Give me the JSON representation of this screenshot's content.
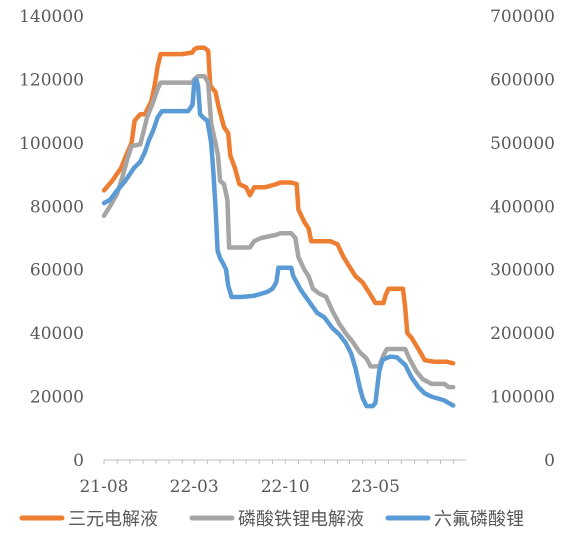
{
  "chart_data": {
    "type": "line",
    "axes": {
      "y_left": {
        "min": 0,
        "max": 140000,
        "ticks": [
          "0",
          "20000",
          "40000",
          "60000",
          "80000",
          "100000",
          "120000",
          "140000"
        ]
      },
      "y_right": {
        "min": 0,
        "max": 700000,
        "ticks": [
          "0",
          "100000",
          "200000",
          "300000",
          "400000",
          "500000",
          "600000",
          "700000"
        ]
      },
      "x": {
        "start": "2021-08",
        "end": "2023-11",
        "tick_labels": [
          "21-08",
          "22-03",
          "22-10",
          "23-05"
        ]
      }
    },
    "grid": false,
    "legend": {
      "position": "bottom"
    },
    "series": [
      {
        "name": "三元电解液",
        "axis": "left",
        "color": "#ED7D31",
        "points": [
          [
            "2021-08-01",
            85000
          ],
          [
            "2021-08-20",
            88000
          ],
          [
            "2021-09-10",
            92000
          ],
          [
            "2021-09-25",
            97000
          ],
          [
            "2021-10-05",
            100000
          ],
          [
            "2021-10-12",
            107000
          ],
          [
            "2021-10-25",
            109000
          ],
          [
            "2021-11-05",
            109000
          ],
          [
            "2021-11-20",
            113000
          ],
          [
            "2021-11-28",
            118000
          ],
          [
            "2021-12-05",
            124000
          ],
          [
            "2021-12-12",
            128000
          ],
          [
            "2022-01-01",
            128000
          ],
          [
            "2022-02-01",
            128000
          ],
          [
            "2022-02-25",
            128500
          ],
          [
            "2022-03-01",
            129500
          ],
          [
            "2022-03-10",
            130000
          ],
          [
            "2022-03-25",
            130000
          ],
          [
            "2022-04-03",
            129000
          ],
          [
            "2022-04-08",
            118000
          ],
          [
            "2022-04-20",
            116000
          ],
          [
            "2022-04-28",
            111000
          ],
          [
            "2022-05-10",
            105000
          ],
          [
            "2022-05-20",
            103000
          ],
          [
            "2022-05-25",
            96000
          ],
          [
            "2022-06-05",
            92000
          ],
          [
            "2022-06-15",
            87000
          ],
          [
            "2022-07-01",
            86000
          ],
          [
            "2022-07-10",
            83500
          ],
          [
            "2022-07-20",
            86000
          ],
          [
            "2022-08-15",
            86000
          ],
          [
            "2022-09-10",
            87000
          ],
          [
            "2022-09-20",
            87500
          ],
          [
            "2022-10-15",
            87500
          ],
          [
            "2022-10-28",
            87000
          ],
          [
            "2022-11-01",
            79000
          ],
          [
            "2022-11-08",
            77000
          ],
          [
            "2022-11-15",
            75000
          ],
          [
            "2022-11-25",
            73000
          ],
          [
            "2022-12-01",
            69000
          ],
          [
            "2023-01-15",
            69000
          ],
          [
            "2023-02-01",
            68000
          ],
          [
            "2023-02-15",
            64000
          ],
          [
            "2023-03-01",
            61000
          ],
          [
            "2023-03-15",
            58000
          ],
          [
            "2023-04-01",
            56000
          ],
          [
            "2023-04-20",
            52000
          ],
          [
            "2023-05-01",
            49500
          ],
          [
            "2023-05-20",
            49500
          ],
          [
            "2023-05-25",
            52000
          ],
          [
            "2023-06-01",
            54000
          ],
          [
            "2023-07-05",
            54000
          ],
          [
            "2023-07-10",
            48000
          ],
          [
            "2023-07-15",
            40000
          ],
          [
            "2023-07-25",
            38500
          ],
          [
            "2023-08-10",
            35000
          ],
          [
            "2023-08-25",
            31500
          ],
          [
            "2023-09-15",
            31000
          ],
          [
            "2023-10-15",
            31000
          ],
          [
            "2023-10-31",
            30500
          ]
        ]
      },
      {
        "name": "磷酸铁锂电解液",
        "axis": "left",
        "color": "#A5A5A5",
        "points": [
          [
            "2021-08-01",
            77000
          ],
          [
            "2021-08-15",
            80000
          ],
          [
            "2021-09-01",
            84000
          ],
          [
            "2021-09-15",
            90000
          ],
          [
            "2021-09-25",
            95000
          ],
          [
            "2021-10-05",
            99000
          ],
          [
            "2021-10-25",
            99500
          ],
          [
            "2021-11-01",
            103000
          ],
          [
            "2021-11-10",
            108000
          ],
          [
            "2021-11-25",
            113000
          ],
          [
            "2021-12-05",
            117000
          ],
          [
            "2021-12-12",
            119000
          ],
          [
            "2022-01-15",
            119000
          ],
          [
            "2022-02-15",
            119000
          ],
          [
            "2022-02-25",
            119000
          ],
          [
            "2022-03-01",
            120000
          ],
          [
            "2022-03-10",
            121000
          ],
          [
            "2022-03-25",
            121000
          ],
          [
            "2022-04-03",
            119000
          ],
          [
            "2022-04-10",
            106000
          ],
          [
            "2022-04-20",
            100000
          ],
          [
            "2022-04-26",
            96000
          ],
          [
            "2022-05-01",
            88000
          ],
          [
            "2022-05-10",
            87000
          ],
          [
            "2022-05-18",
            82000
          ],
          [
            "2022-05-22",
            67000
          ],
          [
            "2022-06-20",
            67000
          ],
          [
            "2022-07-10",
            67000
          ],
          [
            "2022-07-20",
            69000
          ],
          [
            "2022-08-05",
            70000
          ],
          [
            "2022-09-10",
            71000
          ],
          [
            "2022-09-20",
            71500
          ],
          [
            "2022-10-15",
            71500
          ],
          [
            "2022-10-25",
            70000
          ],
          [
            "2022-11-01",
            64000
          ],
          [
            "2022-11-08",
            62000
          ],
          [
            "2022-11-15",
            60000
          ],
          [
            "2022-11-25",
            58000
          ],
          [
            "2022-12-05",
            54000
          ],
          [
            "2022-12-20",
            52500
          ],
          [
            "2023-01-05",
            51500
          ],
          [
            "2023-01-20",
            47000
          ],
          [
            "2023-02-05",
            43000
          ],
          [
            "2023-02-20",
            40000
          ],
          [
            "2023-03-10",
            37000
          ],
          [
            "2023-03-25",
            34000
          ],
          [
            "2023-04-10",
            32000
          ],
          [
            "2023-04-20",
            29500
          ],
          [
            "2023-05-10",
            29500
          ],
          [
            "2023-05-20",
            33000
          ],
          [
            "2023-05-28",
            35000
          ],
          [
            "2023-06-20",
            35000
          ],
          [
            "2023-07-10",
            35000
          ],
          [
            "2023-07-20",
            32000
          ],
          [
            "2023-08-05",
            28000
          ],
          [
            "2023-08-20",
            25500
          ],
          [
            "2023-09-10",
            24000
          ],
          [
            "2023-10-10",
            24000
          ],
          [
            "2023-10-20",
            23000
          ],
          [
            "2023-10-31",
            23000
          ]
        ]
      },
      {
        "name": "六氟磷酸锂",
        "axis": "right",
        "color": "#5B9BD5",
        "points": [
          [
            "2021-08-01",
            405000
          ],
          [
            "2021-08-15",
            410000
          ],
          [
            "2021-09-01",
            425000
          ],
          [
            "2021-09-20",
            440000
          ],
          [
            "2021-10-10",
            460000
          ],
          [
            "2021-10-25",
            470000
          ],
          [
            "2021-11-05",
            485000
          ],
          [
            "2021-11-15",
            505000
          ],
          [
            "2021-11-25",
            520000
          ],
          [
            "2021-12-05",
            540000
          ],
          [
            "2021-12-15",
            550000
          ],
          [
            "2022-01-15",
            550000
          ],
          [
            "2022-02-15",
            550000
          ],
          [
            "2022-02-25",
            560000
          ],
          [
            "2022-03-01",
            595000
          ],
          [
            "2022-03-06",
            600000
          ],
          [
            "2022-03-10",
            590000
          ],
          [
            "2022-03-15",
            545000
          ],
          [
            "2022-03-22",
            540000
          ],
          [
            "2022-04-01",
            535000
          ],
          [
            "2022-04-10",
            500000
          ],
          [
            "2022-04-15",
            455000
          ],
          [
            "2022-04-20",
            400000
          ],
          [
            "2022-04-25",
            330000
          ],
          [
            "2022-05-01",
            318000
          ],
          [
            "2022-05-08",
            310000
          ],
          [
            "2022-05-15",
            300000
          ],
          [
            "2022-05-20",
            275000
          ],
          [
            "2022-05-28",
            257000
          ],
          [
            "2022-06-20",
            257000
          ],
          [
            "2022-07-20",
            259000
          ],
          [
            "2022-08-05",
            262000
          ],
          [
            "2022-08-20",
            265000
          ],
          [
            "2022-09-01",
            270000
          ],
          [
            "2022-09-10",
            280000
          ],
          [
            "2022-09-15",
            303000
          ],
          [
            "2022-10-15",
            303000
          ],
          [
            "2022-10-20",
            290000
          ],
          [
            "2022-10-28",
            280000
          ],
          [
            "2022-11-05",
            270000
          ],
          [
            "2022-11-15",
            260000
          ],
          [
            "2022-12-01",
            245000
          ],
          [
            "2022-12-15",
            232000
          ],
          [
            "2023-01-01",
            225000
          ],
          [
            "2023-01-20",
            208000
          ],
          [
            "2023-02-05",
            198000
          ],
          [
            "2023-02-20",
            185000
          ],
          [
            "2023-03-05",
            168000
          ],
          [
            "2023-03-15",
            145000
          ],
          [
            "2023-03-25",
            115000
          ],
          [
            "2023-04-01",
            98000
          ],
          [
            "2023-04-10",
            85000
          ],
          [
            "2023-04-25",
            85000
          ],
          [
            "2023-05-01",
            90000
          ],
          [
            "2023-05-10",
            140000
          ],
          [
            "2023-05-18",
            158000
          ],
          [
            "2023-06-05",
            163000
          ],
          [
            "2023-06-20",
            162000
          ],
          [
            "2023-07-10",
            150000
          ],
          [
            "2023-07-25",
            130000
          ],
          [
            "2023-08-10",
            115000
          ],
          [
            "2023-08-25",
            105000
          ],
          [
            "2023-09-10",
            100000
          ],
          [
            "2023-09-25",
            97000
          ],
          [
            "2023-10-10",
            94000
          ],
          [
            "2023-10-20",
            90000
          ],
          [
            "2023-10-31",
            86000
          ]
        ]
      }
    ]
  }
}
